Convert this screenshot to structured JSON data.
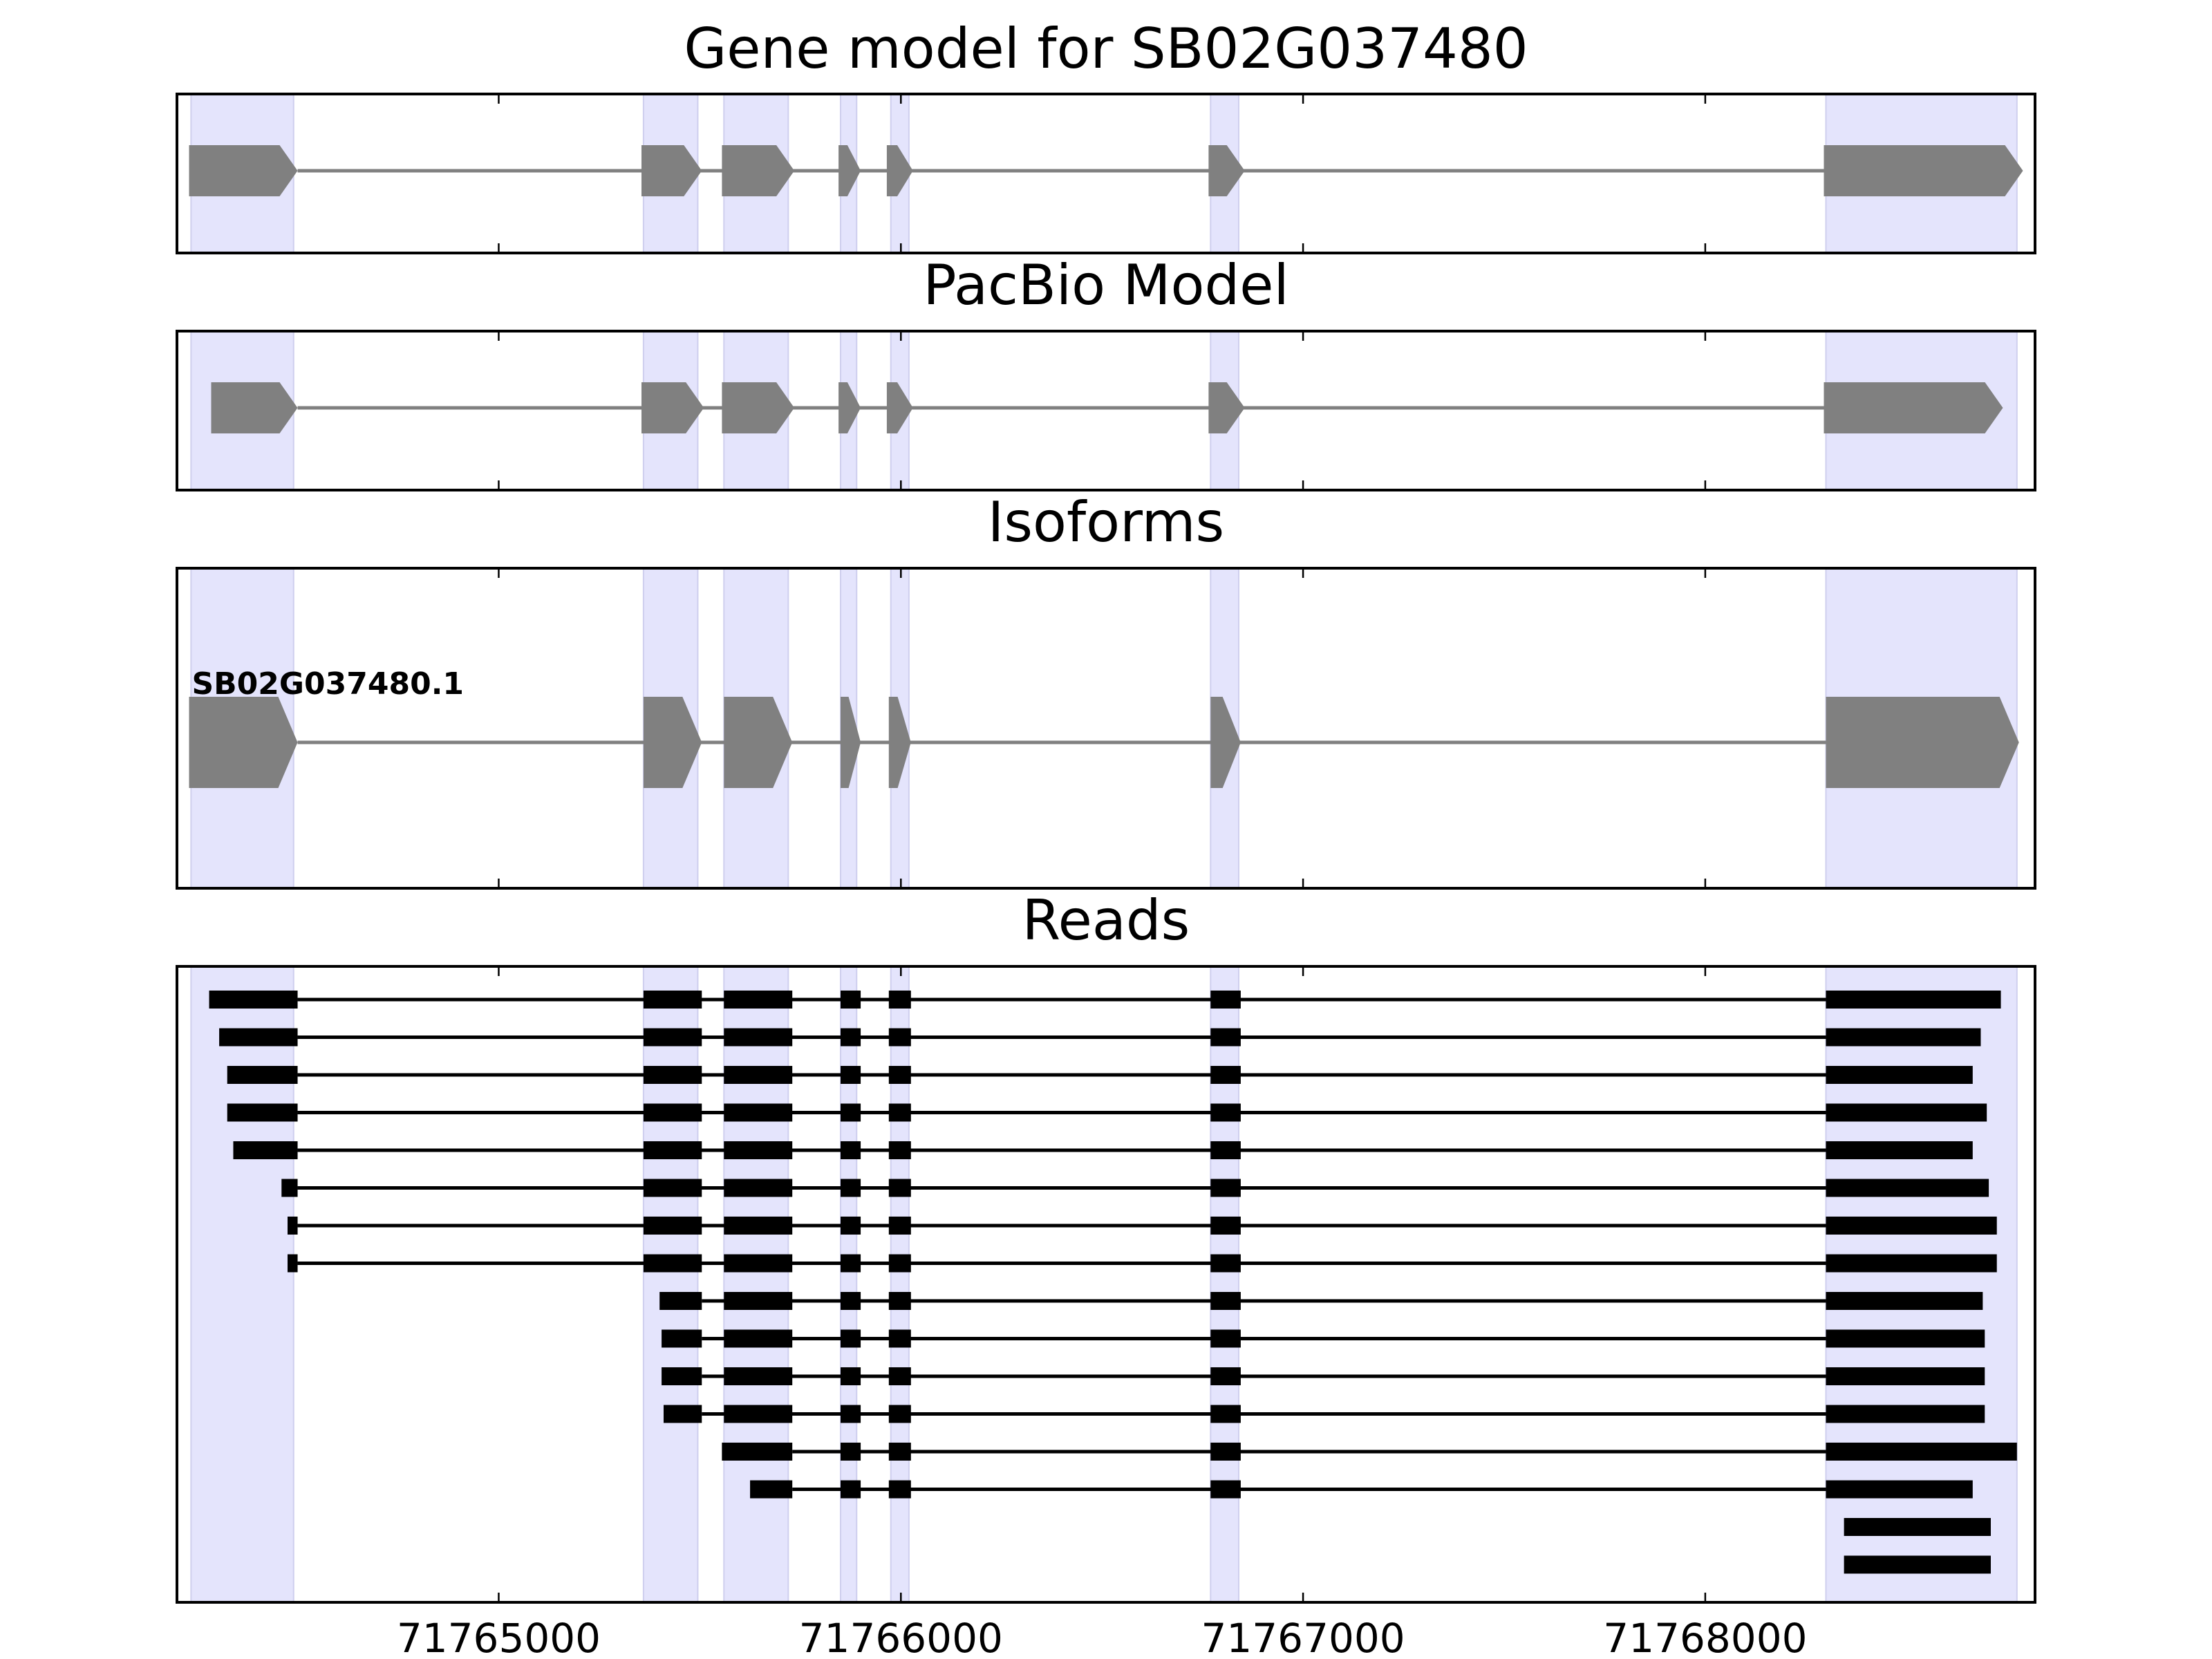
{
  "chart_data": {
    "type": "gene-structure",
    "x_axis": {
      "xlim": [
        71764200,
        71768820
      ],
      "ticks": [
        71765000,
        71766000,
        71767000,
        71768000
      ],
      "tick_labels": [
        "71765000",
        "71766000",
        "71767000",
        "71768000"
      ]
    },
    "colors": {
      "highlight": "#e4e4fc",
      "highlight_edge": "#cfcfee",
      "exon_fill": "#808080",
      "intron_line": "#808080",
      "read_color": "#000000",
      "frame": "#000000"
    },
    "highlight_regions": [
      [
        71764235,
        71764490
      ],
      [
        71765360,
        71765495
      ],
      [
        71765560,
        71765720
      ],
      [
        71765850,
        71765890
      ],
      [
        71765975,
        71766020
      ],
      [
        71766770,
        71766840
      ],
      [
        71768300,
        71768775
      ]
    ],
    "panels": [
      {
        "title": "Gene model for SB02G037480",
        "exons": [
          [
            71764230,
            71764500
          ],
          [
            71765355,
            71765505
          ],
          [
            71765555,
            71765735
          ],
          [
            71765845,
            71765900
          ],
          [
            71765965,
            71766030
          ],
          [
            71766765,
            71766855
          ],
          [
            71768295,
            71768790
          ]
        ]
      },
      {
        "title": "PacBio Model",
        "exons": [
          [
            71764285,
            71764500
          ],
          [
            71765355,
            71765510
          ],
          [
            71765555,
            71765735
          ],
          [
            71765845,
            71765900
          ],
          [
            71765965,
            71766030
          ],
          [
            71766765,
            71766855
          ],
          [
            71768295,
            71768740
          ]
        ]
      },
      {
        "title": "Isoforms",
        "isoforms": [
          {
            "label": "SB02G037480.1",
            "exons": [
              [
                71764230,
                71764500
              ],
              [
                71765360,
                71765505
              ],
              [
                71765560,
                71765730
              ],
              [
                71765850,
                71765900
              ],
              [
                71765970,
                71766025
              ],
              [
                71766770,
                71766845
              ],
              [
                71768300,
                71768780
              ]
            ]
          }
        ]
      },
      {
        "title": "Reads",
        "reads": [
          [
            [
              71764280,
              71764500
            ],
            [
              71765360,
              71765505
            ],
            [
              71765560,
              71765730
            ],
            [
              71765850,
              71765900
            ],
            [
              71765970,
              71766025
            ],
            [
              71766770,
              71766845
            ],
            [
              71768300,
              71768735
            ]
          ],
          [
            [
              71764305,
              71764500
            ],
            [
              71765360,
              71765505
            ],
            [
              71765560,
              71765730
            ],
            [
              71765850,
              71765900
            ],
            [
              71765970,
              71766025
            ],
            [
              71766770,
              71766845
            ],
            [
              71768300,
              71768685
            ]
          ],
          [
            [
              71764325,
              71764500
            ],
            [
              71765360,
              71765505
            ],
            [
              71765560,
              71765730
            ],
            [
              71765850,
              71765900
            ],
            [
              71765970,
              71766025
            ],
            [
              71766770,
              71766845
            ],
            [
              71768300,
              71768665
            ]
          ],
          [
            [
              71764325,
              71764500
            ],
            [
              71765360,
              71765505
            ],
            [
              71765560,
              71765730
            ],
            [
              71765850,
              71765900
            ],
            [
              71765970,
              71766025
            ],
            [
              71766770,
              71766845
            ],
            [
              71768300,
              71768700
            ]
          ],
          [
            [
              71764340,
              71764500
            ],
            [
              71765360,
              71765505
            ],
            [
              71765560,
              71765730
            ],
            [
              71765850,
              71765900
            ],
            [
              71765970,
              71766025
            ],
            [
              71766770,
              71766845
            ],
            [
              71768300,
              71768665
            ]
          ],
          [
            [
              71764460,
              71764500
            ],
            [
              71765360,
              71765505
            ],
            [
              71765560,
              71765730
            ],
            [
              71765850,
              71765900
            ],
            [
              71765970,
              71766025
            ],
            [
              71766770,
              71766845
            ],
            [
              71768300,
              71768705
            ]
          ],
          [
            [
              71764475,
              71764500
            ],
            [
              71765360,
              71765505
            ],
            [
              71765560,
              71765730
            ],
            [
              71765850,
              71765900
            ],
            [
              71765970,
              71766025
            ],
            [
              71766770,
              71766845
            ],
            [
              71768300,
              71768725
            ]
          ],
          [
            [
              71764475,
              71764500
            ],
            [
              71765360,
              71765505
            ],
            [
              71765560,
              71765730
            ],
            [
              71765850,
              71765900
            ],
            [
              71765970,
              71766025
            ],
            [
              71766770,
              71766845
            ],
            [
              71768300,
              71768725
            ]
          ],
          [
            [
              71765400,
              71765505
            ],
            [
              71765560,
              71765730
            ],
            [
              71765850,
              71765900
            ],
            [
              71765970,
              71766025
            ],
            [
              71766770,
              71766845
            ],
            [
              71768300,
              71768690
            ]
          ],
          [
            [
              71765405,
              71765505
            ],
            [
              71765560,
              71765730
            ],
            [
              71765850,
              71765900
            ],
            [
              71765970,
              71766025
            ],
            [
              71766770,
              71766845
            ],
            [
              71768300,
              71768695
            ]
          ],
          [
            [
              71765405,
              71765505
            ],
            [
              71765560,
              71765730
            ],
            [
              71765850,
              71765900
            ],
            [
              71765970,
              71766025
            ],
            [
              71766770,
              71766845
            ],
            [
              71768300,
              71768695
            ]
          ],
          [
            [
              71765410,
              71765505
            ],
            [
              71765560,
              71765730
            ],
            [
              71765850,
              71765900
            ],
            [
              71765970,
              71766025
            ],
            [
              71766770,
              71766845
            ],
            [
              71768300,
              71768695
            ]
          ],
          [
            [
              71765555,
              71765730
            ],
            [
              71765850,
              71765900
            ],
            [
              71765970,
              71766025
            ],
            [
              71766770,
              71766845
            ],
            [
              71768300,
              71768775
            ]
          ],
          [
            [
              71765625,
              71765730
            ],
            [
              71765850,
              71765900
            ],
            [
              71765970,
              71766025
            ],
            [
              71766770,
              71766845
            ],
            [
              71768300,
              71768665
            ]
          ],
          [
            [
              71768345,
              71768710
            ]
          ],
          [
            [
              71768345,
              71768710
            ]
          ]
        ]
      }
    ]
  }
}
